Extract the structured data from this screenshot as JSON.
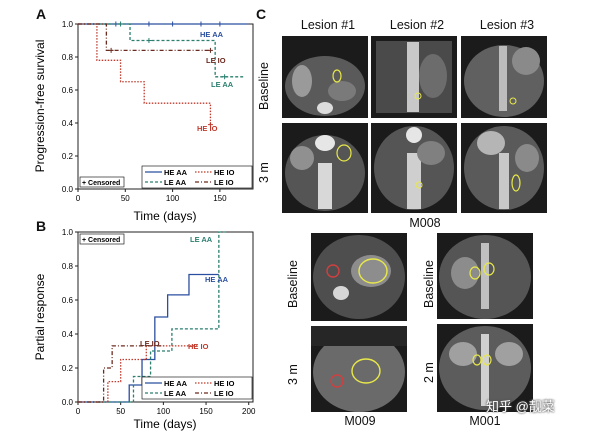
{
  "panels": {
    "a": {
      "letter": "A",
      "ylabel": "Progression-free survival",
      "xlabel": "Time (days)",
      "yticks": [
        "0.0",
        "0.2",
        "0.4",
        "0.6",
        "0.8",
        "1.0"
      ],
      "xticks": [
        "0",
        "50",
        "100",
        "150"
      ],
      "censored_label": "+ Censored",
      "legend": [
        "HE AA",
        "LE AA",
        "HE IO",
        "LE IO"
      ],
      "curve_labels": {
        "he_aa": "HE AA",
        "le_io": "LE IO",
        "le_aa": "LE AA",
        "he_io": "HE IO"
      }
    },
    "b": {
      "letter": "B",
      "ylabel": "Partial response",
      "xlabel": "Time (days)",
      "yticks": [
        "0.0",
        "0.2",
        "0.4",
        "0.6",
        "0.8",
        "1.0"
      ],
      "xticks": [
        "0",
        "50",
        "100",
        "150",
        "200"
      ],
      "censored_label": "+ Censored",
      "legend": [
        "HE AA",
        "LE AA",
        "HE IO",
        "LE IO"
      ],
      "curve_labels": {
        "le_aa": "LE AA",
        "he_aa": "HE AA",
        "le_io": "LE IO",
        "he_io": "HE IO"
      }
    },
    "c": {
      "letter": "C",
      "lesion_titles": [
        "Lesion #1",
        "Lesion #2",
        "Lesion #3"
      ],
      "row_baseline": "Baseline",
      "row_3m": "3 m",
      "row_2m": "2 m",
      "patient_m008": "M008",
      "patient_m009": "M009",
      "patient_m001": "M001"
    }
  },
  "watermark": "知乎 @靓菜",
  "colors": {
    "he_aa": "#2b4fa0",
    "le_aa": "#2a7f6f",
    "he_io": "#c0392b",
    "le_io": "#6b2a1f",
    "lesion_outline": "#e8e84a"
  },
  "chart_data": [
    {
      "type": "line",
      "title": "",
      "xlabel": "Time (days)",
      "ylabel": "Progression-free survival",
      "xlim": [
        0,
        185
      ],
      "ylim": [
        0,
        1.0
      ],
      "step": true,
      "series": [
        {
          "name": "HE AA",
          "x": [
            0,
            180
          ],
          "y": [
            1.0,
            1.0
          ],
          "censored_x": [
            40,
            75,
            100,
            130,
            150
          ]
        },
        {
          "name": "LE AA",
          "x": [
            0,
            55,
            55,
            145,
            145,
            175
          ],
          "y": [
            1.0,
            1.0,
            0.9,
            0.9,
            0.68,
            0.68
          ],
          "censored_x": [
            45,
            75,
            155
          ]
        },
        {
          "name": "HE IO",
          "x": [
            0,
            20,
            20,
            45,
            45,
            70,
            70,
            140,
            140
          ],
          "y": [
            1.0,
            1.0,
            0.78,
            0.78,
            0.65,
            0.65,
            0.52,
            0.52,
            0.39
          ],
          "censored_x": [
            140
          ]
        },
        {
          "name": "LE IO",
          "x": [
            0,
            30,
            30,
            140
          ],
          "y": [
            1.0,
            1.0,
            0.84,
            0.84
          ],
          "censored_x": [
            35,
            140
          ]
        }
      ]
    },
    {
      "type": "line",
      "title": "",
      "xlabel": "Time (days)",
      "ylabel": "Partial response",
      "xlim": [
        0,
        205
      ],
      "ylim": [
        0,
        1.0
      ],
      "step": true,
      "series": [
        {
          "name": "HE AA",
          "x": [
            0,
            60,
            60,
            75,
            75,
            90,
            90,
            105,
            105,
            130,
            130,
            165
          ],
          "y": [
            0,
            0,
            0.1,
            0.1,
            0.25,
            0.25,
            0.5,
            0.5,
            0.63,
            0.63,
            0.75,
            0.75
          ]
        },
        {
          "name": "LE AA",
          "x": [
            0,
            65,
            65,
            85,
            85,
            110,
            110,
            165,
            165,
            175
          ],
          "y": [
            0,
            0,
            0.15,
            0.15,
            0.3,
            0.3,
            0.43,
            0.43,
            1.0,
            1.0
          ]
        },
        {
          "name": "HE IO",
          "x": [
            0,
            35,
            35,
            50,
            50,
            80,
            80,
            140
          ],
          "y": [
            0,
            0,
            0.12,
            0.12,
            0.25,
            0.25,
            0.33,
            0.33
          ]
        },
        {
          "name": "LE IO",
          "x": [
            0,
            30,
            30,
            40,
            40,
            100
          ],
          "y": [
            0,
            0,
            0.2,
            0.2,
            0.33,
            0.33
          ]
        }
      ]
    }
  ]
}
